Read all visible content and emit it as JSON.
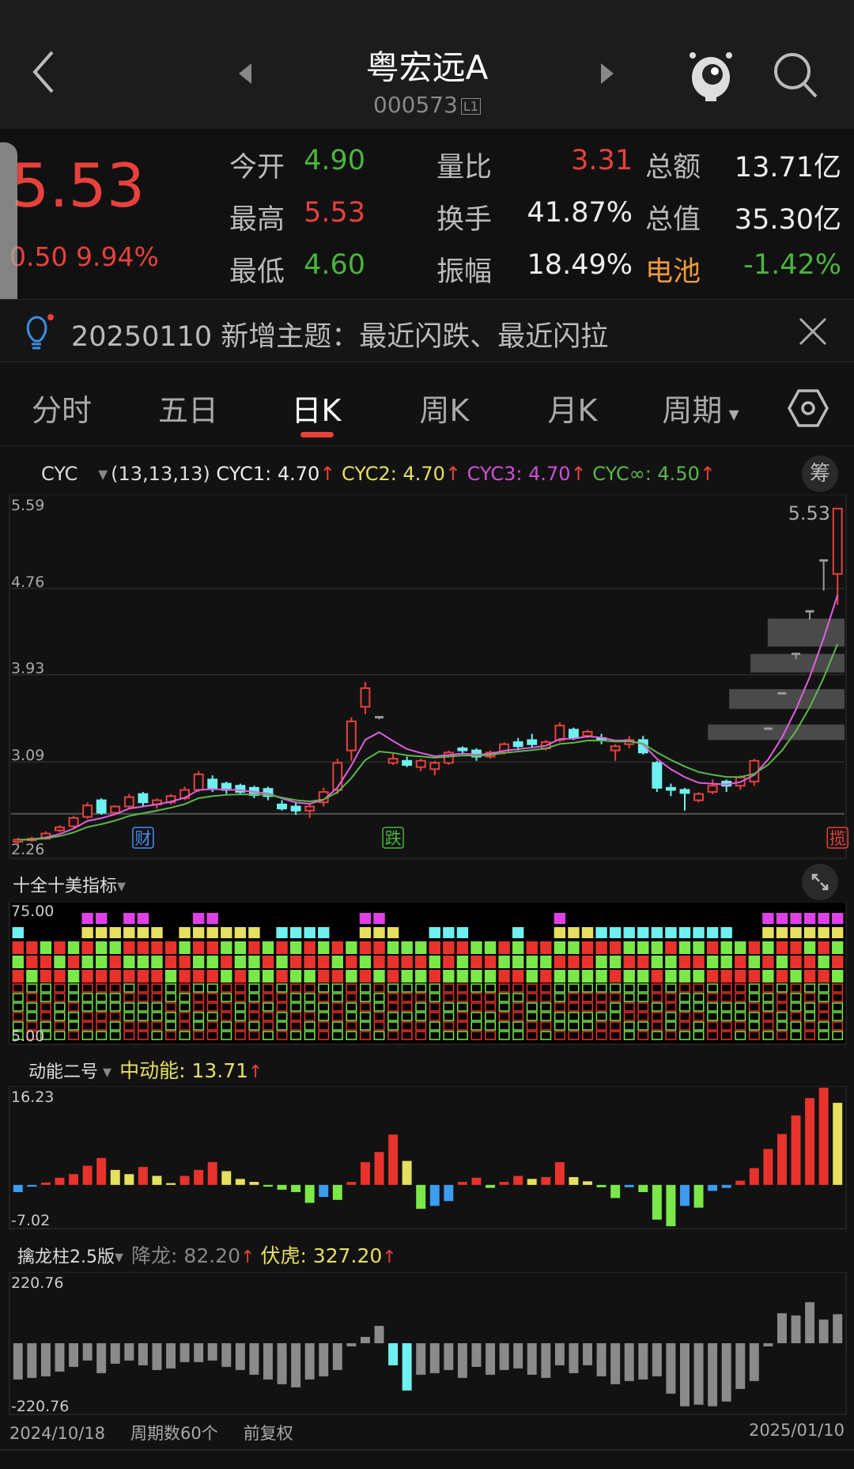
{
  "header": {
    "title": "粤宏远A",
    "code": "000573",
    "level": "L1"
  },
  "quote": {
    "price": "5.53",
    "change": "0.50",
    "change_pct": "9.94%",
    "rows": [
      [
        {
          "label": "今开",
          "value": "4.90",
          "color": "green"
        },
        {
          "label": "量比",
          "value": "3.31",
          "color": "red"
        },
        {
          "label": "总额",
          "value": "13.71亿",
          "color": "white"
        }
      ],
      [
        {
          "label": "最高",
          "value": "5.53",
          "color": "red"
        },
        {
          "label": "换手",
          "value": "41.87%",
          "color": "white"
        },
        {
          "label": "总值",
          "value": "35.30亿",
          "color": "white"
        }
      ],
      [
        {
          "label": "最低",
          "value": "4.60",
          "color": "green"
        },
        {
          "label": "振幅",
          "value": "18.49%",
          "color": "white"
        },
        {
          "label": "电池",
          "value": "-1.42%",
          "color": "green",
          "label_color": "orange"
        }
      ]
    ]
  },
  "notice": {
    "text": "20250110 新增主题：最近闪跌、最近闪拉"
  },
  "tabs": [
    {
      "label": "分时"
    },
    {
      "label": "五日"
    },
    {
      "label": "日K",
      "active": true
    },
    {
      "label": "周K"
    },
    {
      "label": "月K"
    },
    {
      "label": "周期"
    }
  ],
  "main": {
    "indicator": "CYC",
    "params": "(13,13,13)",
    "cyc1": "CYC1: 4.70",
    "cyc2": "CYC2: 4.70",
    "cyc3": "CYC3: 4.70",
    "cycinf": "CYC∞: 4.50",
    "chip_button": "筹",
    "y_labels": [
      "5.59",
      "4.76",
      "3.93",
      "3.09",
      "2.26"
    ],
    "last_label": "5.53",
    "badges": [
      {
        "text": "财",
        "index": 9,
        "color": "#4a8df0"
      },
      {
        "text": "跌",
        "index": 27,
        "color": "#4ab53d"
      },
      {
        "text": "揽",
        "index": 59,
        "color": "#e8413c"
      }
    ]
  },
  "p1": {
    "name": "十全十美指标",
    "top": "75.00",
    "bottom": "5.00",
    "magenta_cols": [
      5,
      6,
      8,
      9,
      13,
      14,
      25,
      26,
      39,
      54,
      55,
      56,
      57,
      58,
      59
    ],
    "yellow_cols": [
      5,
      6,
      7,
      8,
      9,
      10,
      12,
      13,
      14,
      15,
      16,
      17,
      25,
      26,
      27,
      39,
      40,
      41,
      54,
      55,
      56,
      57,
      58,
      59
    ],
    "cyan_cols": [
      0,
      19,
      20,
      21,
      22,
      30,
      31,
      32,
      36,
      42,
      43,
      44,
      45,
      46,
      47,
      48,
      49,
      50,
      51
    ]
  },
  "p2": {
    "name": "动能二号",
    "value": "中动能: 13.71",
    "top": "16.23",
    "bottom": "-7.02",
    "values": [
      -1.2,
      -0.3,
      0.4,
      1.2,
      1.8,
      3.2,
      4.5,
      2.5,
      1.8,
      3.0,
      1.5,
      0.3,
      1.5,
      2.5,
      3.8,
      2.3,
      1.0,
      0.5,
      -0.3,
      -0.8,
      -1.2,
      -3.0,
      -2.0,
      -2.5,
      0.5,
      3.8,
      5.5,
      8.4,
      4.0,
      -4.0,
      -3.5,
      -2.7,
      0.5,
      1.2,
      -0.5,
      0.5,
      1.5,
      1.0,
      1.3,
      3.8,
      1.3,
      0.6,
      -0.4,
      -2.2,
      -0.4,
      -1.2,
      -5.8,
      -6.9,
      -3.5,
      -3.8,
      -1.0,
      -0.5,
      0.7,
      2.8,
      6.0,
      8.5,
      11.6,
      14.5,
      16.23,
      13.71
    ]
  },
  "p3": {
    "name": "擒龙柱2.5版",
    "v1": "降龙: 82.20",
    "v2": "伏虎: 327.20",
    "top": "220.76",
    "bottom": "-220.76",
    "cyan_cols": [
      27,
      28
    ],
    "values": [
      -115,
      -110,
      -105,
      -90,
      -75,
      -55,
      -95,
      -65,
      -55,
      -70,
      -85,
      -80,
      -60,
      -60,
      -55,
      -75,
      -85,
      -100,
      -115,
      -130,
      -140,
      -115,
      -105,
      -85,
      -10,
      20,
      55,
      -70,
      -150,
      -100,
      -95,
      -85,
      -110,
      -75,
      -100,
      -85,
      -80,
      -100,
      -110,
      -70,
      -95,
      -70,
      -105,
      -130,
      -120,
      -115,
      -105,
      -160,
      -200,
      -195,
      -200,
      -185,
      -145,
      -120,
      -10,
      95,
      88,
      130,
      75,
      92
    ]
  },
  "footer": {
    "start": "2024/10/18",
    "periods": "周期数60个",
    "adjust": "前复权",
    "end": "2025/01/10"
  },
  "colors": {
    "up": "#e8413c",
    "down": "#6ff0f0",
    "ma1": "#e060e0",
    "ma2": "#5cb84a",
    "yellow": "#e6e060",
    "magenta": "#e040e8"
  },
  "chart_data": {
    "type": "candlestick",
    "ylim": [
      2.26,
      5.59
    ],
    "ohlc": [
      [
        2.32,
        2.36,
        2.3,
        2.34
      ],
      [
        2.34,
        2.37,
        2.32,
        2.35
      ],
      [
        2.35,
        2.42,
        2.34,
        2.4
      ],
      [
        2.43,
        2.48,
        2.41,
        2.46
      ],
      [
        2.47,
        2.57,
        2.45,
        2.55
      ],
      [
        2.56,
        2.7,
        2.54,
        2.67
      ],
      [
        2.72,
        2.74,
        2.58,
        2.6
      ],
      [
        2.6,
        2.67,
        2.58,
        2.66
      ],
      [
        2.66,
        2.78,
        2.64,
        2.75
      ],
      [
        2.78,
        2.8,
        2.66,
        2.7
      ],
      [
        2.68,
        2.74,
        2.64,
        2.72
      ],
      [
        2.7,
        2.78,
        2.68,
        2.76
      ],
      [
        2.74,
        2.85,
        2.72,
        2.82
      ],
      [
        2.82,
        3.0,
        2.8,
        2.97
      ],
      [
        2.92,
        2.96,
        2.8,
        2.84
      ],
      [
        2.88,
        2.9,
        2.78,
        2.82
      ],
      [
        2.86,
        2.88,
        2.78,
        2.8
      ],
      [
        2.84,
        2.86,
        2.74,
        2.77
      ],
      [
        2.83,
        2.85,
        2.72,
        2.76
      ],
      [
        2.68,
        2.72,
        2.62,
        2.64
      ],
      [
        2.66,
        2.7,
        2.58,
        2.62
      ],
      [
        2.62,
        2.68,
        2.55,
        2.66
      ],
      [
        2.7,
        2.84,
        2.66,
        2.8
      ],
      [
        2.82,
        3.12,
        2.78,
        3.08
      ],
      [
        3.2,
        3.52,
        3.1,
        3.48
      ],
      [
        3.62,
        3.86,
        3.55,
        3.8
      ],
      [
        3.52,
        3.52,
        3.5,
        3.52
      ],
      [
        3.08,
        3.18,
        3.06,
        3.12
      ],
      [
        3.1,
        3.14,
        3.04,
        3.06
      ],
      [
        3.04,
        3.12,
        3.0,
        3.1
      ],
      [
        3.02,
        3.1,
        2.96,
        3.08
      ],
      [
        3.08,
        3.2,
        3.06,
        3.18
      ],
      [
        3.22,
        3.24,
        3.16,
        3.2
      ],
      [
        3.2,
        3.22,
        3.1,
        3.14
      ],
      [
        3.14,
        3.2,
        3.12,
        3.18
      ],
      [
        3.18,
        3.28,
        3.16,
        3.26
      ],
      [
        3.28,
        3.32,
        3.2,
        3.24
      ],
      [
        3.3,
        3.36,
        3.22,
        3.26
      ],
      [
        3.22,
        3.3,
        3.2,
        3.28
      ],
      [
        3.3,
        3.47,
        3.28,
        3.44
      ],
      [
        3.4,
        3.42,
        3.3,
        3.32
      ],
      [
        3.34,
        3.4,
        3.32,
        3.38
      ],
      [
        3.32,
        3.36,
        3.26,
        3.3
      ],
      [
        3.2,
        3.26,
        3.1,
        3.24
      ],
      [
        3.26,
        3.34,
        3.22,
        3.3
      ],
      [
        3.3,
        3.34,
        3.16,
        3.18
      ],
      [
        3.08,
        3.1,
        2.8,
        2.84
      ],
      [
        2.84,
        2.88,
        2.76,
        2.82
      ],
      [
        2.82,
        2.84,
        2.62,
        2.79
      ],
      [
        2.72,
        2.8,
        2.7,
        2.78
      ],
      [
        2.8,
        2.92,
        2.78,
        2.86
      ],
      [
        2.9,
        2.92,
        2.8,
        2.86
      ],
      [
        2.86,
        2.96,
        2.82,
        2.94
      ],
      [
        2.9,
        3.12,
        2.86,
        3.1
      ],
      [
        3.41,
        3.41,
        3.41,
        3.41
      ],
      [
        3.75,
        3.75,
        3.75,
        3.75
      ],
      [
        4.13,
        4.13,
        4.08,
        4.13
      ],
      [
        4.54,
        4.54,
        4.46,
        4.54
      ],
      [
        5.03,
        5.03,
        4.74,
        5.03
      ],
      [
        4.9,
        5.53,
        4.6,
        5.53
      ]
    ]
  }
}
